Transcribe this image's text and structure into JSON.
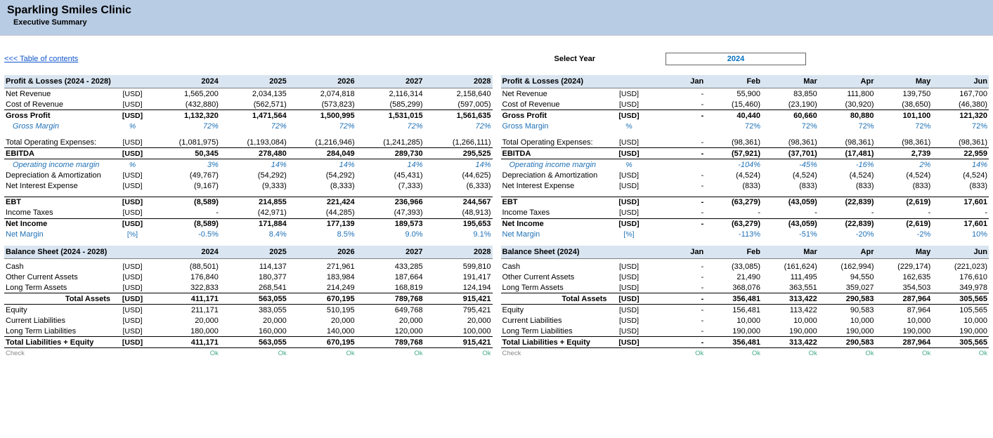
{
  "header": {
    "title": "Sparkling Smiles Clinic",
    "subtitle": " Executive Summary"
  },
  "toc": {
    "link": "<<< Table of contents",
    "select_label": "Select Year",
    "select_value": "2024"
  },
  "left": {
    "pl_title": "Profit & Losses (2024 - 2028)",
    "bs_title": "Balance Sheet (2024 - 2028)",
    "years": [
      "2024",
      "2025",
      "2026",
      "2027",
      "2028"
    ],
    "rows_pl": [
      {
        "label": "Net Revenue",
        "unit": "[USD]",
        "vals": [
          "1,565,200",
          "2,034,135",
          "2,074,818",
          "2,116,314",
          "2,158,640"
        ]
      },
      {
        "label": "Cost of Revenue",
        "unit": "[USD]",
        "vals": [
          "(432,880)",
          "(562,571)",
          "(573,823)",
          "(585,299)",
          "(597,005)"
        ]
      },
      {
        "label": "Gross Profit",
        "unit": "[USD]",
        "vals": [
          "1,132,320",
          "1,471,564",
          "1,500,995",
          "1,531,015",
          "1,561,635"
        ],
        "bold": true,
        "bt": true
      },
      {
        "label": "Gross Margin",
        "unit": "%",
        "vals": [
          "72%",
          "72%",
          "72%",
          "72%",
          "72%"
        ],
        "italicblue": true,
        "indent": true
      },
      {
        "spacer": true
      },
      {
        "label": "Total Operating Expenses:",
        "unit": "[USD]",
        "vals": [
          "(1,081,975)",
          "(1,193,084)",
          "(1,216,946)",
          "(1,241,285)",
          "(1,266,111)"
        ]
      },
      {
        "label": "EBITDA",
        "unit": "[USD]",
        "vals": [
          "50,345",
          "278,480",
          "284,049",
          "289,730",
          "295,525"
        ],
        "bold": true,
        "bt": true,
        "bb": true
      },
      {
        "label": "Operating income margin",
        "unit": "%",
        "vals": [
          "3%",
          "14%",
          "14%",
          "14%",
          "14%"
        ],
        "italicblue": true,
        "indent": true
      },
      {
        "label": "Depreciation & Amortization",
        "unit": "[USD]",
        "vals": [
          "(49,767)",
          "(54,292)",
          "(54,292)",
          "(45,431)",
          "(44,625)"
        ]
      },
      {
        "label": "Net Interest Expense",
        "unit": "[USD]",
        "vals": [
          "(9,167)",
          "(9,333)",
          "(8,333)",
          "(7,333)",
          "(6,333)"
        ]
      },
      {
        "spacer": true
      },
      {
        "label": "EBT",
        "unit": "[USD]",
        "vals": [
          "(8,589)",
          "214,855",
          "221,424",
          "236,966",
          "244,567"
        ],
        "bold": true,
        "bt": true
      },
      {
        "label": "Income Taxes",
        "unit": "[USD]",
        "vals": [
          "-",
          "(42,971)",
          "(44,285)",
          "(47,393)",
          "(48,913)"
        ]
      },
      {
        "label": "Net Income",
        "unit": "[USD]",
        "vals": [
          "(8,589)",
          "171,884",
          "177,139",
          "189,573",
          "195,653"
        ],
        "bold": true,
        "bt": true
      },
      {
        "label": "Net Margin",
        "unit": "[%]",
        "vals": [
          "-0.5%",
          "8.4%",
          "8.5%",
          "9.0%",
          "9.1%"
        ],
        "blue": true
      }
    ],
    "rows_bs": [
      {
        "label": "Cash",
        "unit": "[USD]",
        "vals": [
          "(88,501)",
          "114,137",
          "271,961",
          "433,285",
          "599,810"
        ]
      },
      {
        "label": "Other Current Assets",
        "unit": "[USD]",
        "vals": [
          "176,840",
          "180,377",
          "183,984",
          "187,664",
          "191,417"
        ]
      },
      {
        "label": "Long Term Assets",
        "unit": "[USD]",
        "vals": [
          "322,833",
          "268,541",
          "214,249",
          "168,819",
          "124,194"
        ]
      },
      {
        "label": "Total Assets",
        "unit": "[USD]",
        "vals": [
          "411,171",
          "563,055",
          "670,195",
          "789,768",
          "915,421"
        ],
        "bold": true,
        "bt": true,
        "bb": true,
        "ralignlabel": true
      },
      {
        "label": "Equity",
        "unit": "[USD]",
        "vals": [
          "211,171",
          "383,055",
          "510,195",
          "649,768",
          "795,421"
        ]
      },
      {
        "label": "Current Liabilities",
        "unit": "[USD]",
        "vals": [
          "20,000",
          "20,000",
          "20,000",
          "20,000",
          "20,000"
        ]
      },
      {
        "label": "Long Term Liabilities",
        "unit": "[USD]",
        "vals": [
          "180,000",
          "160,000",
          "140,000",
          "120,000",
          "100,000"
        ]
      },
      {
        "label": "Total Liabilities + Equity",
        "unit": "[USD]",
        "vals": [
          "411,171",
          "563,055",
          "670,195",
          "789,768",
          "915,421"
        ],
        "bold": true,
        "bt": true,
        "bb": true
      }
    ]
  },
  "right": {
    "pl_title": "Profit & Losses (2024)",
    "bs_title": "Balance Sheet (2024)",
    "months": [
      "Jan",
      "Feb",
      "Mar",
      "Apr",
      "May",
      "Jun"
    ],
    "rows_pl": [
      {
        "label": "Net Revenue",
        "unit": "[USD]",
        "vals": [
          "-",
          "55,900",
          "83,850",
          "111,800",
          "139,750",
          "167,700"
        ]
      },
      {
        "label": "Cost of Revenue",
        "unit": "[USD]",
        "vals": [
          "-",
          "(15,460)",
          "(23,190)",
          "(30,920)",
          "(38,650)",
          "(46,380)"
        ]
      },
      {
        "label": "Gross Profit",
        "unit": "[USD]",
        "vals": [
          "-",
          "40,440",
          "60,660",
          "80,880",
          "101,100",
          "121,320"
        ],
        "bold": true,
        "bt": true
      },
      {
        "label": "Gross Margin",
        "unit": "%",
        "vals": [
          "",
          "72%",
          "72%",
          "72%",
          "72%",
          "72%"
        ],
        "blue": true
      },
      {
        "spacer": true
      },
      {
        "label": "Total Operating Expenses:",
        "unit": "[USD]",
        "vals": [
          "-",
          "(98,361)",
          "(98,361)",
          "(98,361)",
          "(98,361)",
          "(98,361)"
        ]
      },
      {
        "label": "EBITDA",
        "unit": "[USD]",
        "vals": [
          "-",
          "(57,921)",
          "(37,701)",
          "(17,481)",
          "2,739",
          "22,959"
        ],
        "bold": true,
        "bt": true,
        "bb": true
      },
      {
        "label": "Operating income margin",
        "unit": "%",
        "vals": [
          "",
          "-104%",
          "-45%",
          "-16%",
          "2%",
          "14%"
        ],
        "italicblue": true,
        "indent": true
      },
      {
        "label": "Depreciation & Amortization",
        "unit": "[USD]",
        "vals": [
          "-",
          "(4,524)",
          "(4,524)",
          "(4,524)",
          "(4,524)",
          "(4,524)"
        ]
      },
      {
        "label": "Net Interest Expense",
        "unit": "[USD]",
        "vals": [
          "-",
          "(833)",
          "(833)",
          "(833)",
          "(833)",
          "(833)"
        ]
      },
      {
        "spacer": true
      },
      {
        "label": "EBT",
        "unit": "[USD]",
        "vals": [
          "-",
          "(63,279)",
          "(43,059)",
          "(22,839)",
          "(2,619)",
          "17,601"
        ],
        "bold": true,
        "bt": true
      },
      {
        "label": "Income Taxes",
        "unit": "[USD]",
        "vals": [
          "-",
          "-",
          "-",
          "-",
          "-",
          "-"
        ]
      },
      {
        "label": "Net Income",
        "unit": "[USD]",
        "vals": [
          "-",
          "(63,279)",
          "(43,059)",
          "(22,839)",
          "(2,619)",
          "17,601"
        ],
        "bold": true,
        "bt": true
      },
      {
        "label": "Net Margin",
        "unit": "[%]",
        "vals": [
          "",
          "-113%",
          "-51%",
          "-20%",
          "-2%",
          "10%"
        ],
        "blue": true
      }
    ],
    "rows_bs": [
      {
        "label": "Cash",
        "unit": "[USD]",
        "vals": [
          "-",
          "(33,085)",
          "(161,624)",
          "(162,994)",
          "(229,174)",
          "(221,023)"
        ]
      },
      {
        "label": "Other Current Assets",
        "unit": "[USD]",
        "vals": [
          "-",
          "21,490",
          "111,495",
          "94,550",
          "162,635",
          "176,610"
        ]
      },
      {
        "label": "Long Term Assets",
        "unit": "[USD]",
        "vals": [
          "-",
          "368,076",
          "363,551",
          "359,027",
          "354,503",
          "349,978"
        ]
      },
      {
        "label": "Total Assets",
        "unit": "[USD]",
        "vals": [
          "-",
          "356,481",
          "313,422",
          "290,583",
          "287,964",
          "305,565"
        ],
        "bold": true,
        "bt": true,
        "bb": true,
        "ralignlabel": true
      },
      {
        "label": "Equity",
        "unit": "[USD]",
        "vals": [
          "-",
          "156,481",
          "113,422",
          "90,583",
          "87,964",
          "105,565"
        ]
      },
      {
        "label": "Current Liabilities",
        "unit": "[USD]",
        "vals": [
          "-",
          "10,000",
          "10,000",
          "10,000",
          "10,000",
          "10,000"
        ]
      },
      {
        "label": "Long Term Liabilities",
        "unit": "[USD]",
        "vals": [
          "-",
          "190,000",
          "190,000",
          "190,000",
          "190,000",
          "190,000"
        ]
      },
      {
        "label": "Total Liabilities + Equity",
        "unit": "[USD]",
        "vals": [
          "-",
          "356,481",
          "313,422",
          "290,583",
          "287,964",
          "305,565"
        ],
        "bold": true,
        "bt": true,
        "bb": true
      }
    ]
  },
  "check": {
    "label": "Check",
    "ok": "Ok"
  }
}
